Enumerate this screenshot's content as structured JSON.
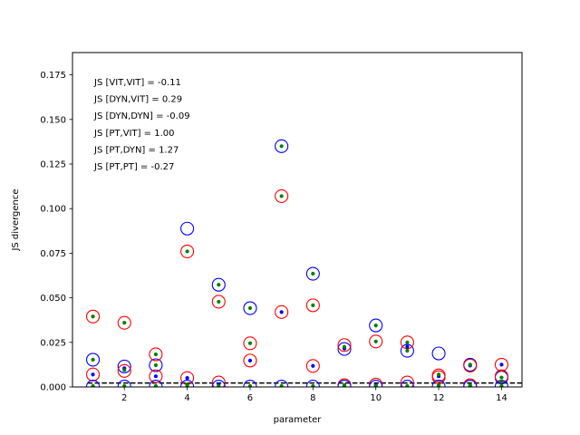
{
  "chart_data": {
    "type": "scatter",
    "title": "",
    "xlabel": "parameter",
    "ylabel": "JS divergence",
    "xlim": [
      0.35,
      14.65
    ],
    "ylim": [
      0,
      0.1875
    ],
    "x_ticks": [
      2,
      4,
      6,
      8,
      10,
      12,
      14
    ],
    "x_tick_labels": [
      "2",
      "4",
      "6",
      "8",
      "10",
      "12",
      "14"
    ],
    "y_ticks": [
      0,
      0.025,
      0.05,
      0.075,
      0.1,
      0.125,
      0.15,
      0.175
    ],
    "y_tick_labels": [
      "0.000",
      "0.025",
      "0.050",
      "0.075",
      "0.100",
      "0.125",
      "0.150",
      "0.175"
    ],
    "grid": false,
    "annotations": [
      "JS [VIT,VIT] = -0.11",
      "JS [DYN,VIT] = 0.29",
      "JS [DYN,DYN] = -0.09",
      "JS [PT,VIT] = 1.00",
      "JS [PT,DYN] = 1.27",
      "JS [PT,PT] = -0.27"
    ],
    "reference_line": {
      "y": 0.0022,
      "style": "dashed",
      "color": "#000000"
    },
    "series": [
      {
        "marker": "open-circle",
        "color": "#0000ff",
        "x": [
          1,
          2,
          3,
          4,
          5,
          6,
          7,
          8,
          9,
          10,
          11,
          12,
          13,
          14
        ],
        "y": [
          0.0153,
          0.0115,
          0.0122,
          0.0888,
          0.0573,
          0.0442,
          0.135,
          0.0635,
          0.0213,
          0.0345,
          0.0203,
          0.0188,
          0.0125,
          0.0053
        ]
      },
      {
        "marker": "open-circle",
        "color": "#ff0000",
        "x": [
          1,
          2,
          3,
          4,
          5,
          6,
          7,
          8,
          9,
          10,
          11,
          12,
          13,
          14
        ],
        "y": [
          0.0395,
          0.036,
          0.0183,
          0.076,
          0.0478,
          0.0245,
          0.107,
          0.0458,
          0.0235,
          0.0255,
          0.025,
          0.0065,
          0.012,
          0.0125
        ]
      },
      {
        "marker": "open-circle",
        "color": "#ff0000",
        "x": [
          1,
          2,
          3,
          4,
          5,
          6,
          7,
          8,
          9,
          10,
          11,
          12,
          13,
          14
        ],
        "y": [
          0.007,
          0.009,
          0.006,
          0.005,
          0.0025,
          0.0148,
          0.042,
          0.0118,
          0.001,
          0.0013,
          0.0025,
          0.0055,
          0.001,
          0.006
        ]
      },
      {
        "marker": "open-circle",
        "color": "#0000ff",
        "x": [
          1,
          2,
          3,
          4,
          5,
          6,
          7,
          8,
          9,
          10,
          11,
          12,
          13,
          14
        ],
        "y": [
          0.0002,
          0.0002,
          0.0002,
          0.0002,
          0.0002,
          0.0002,
          0.0002,
          0.0002,
          0.0002,
          0.0002,
          0.0002,
          0.0002,
          0.0002,
          0.0002
        ]
      },
      {
        "marker": "dot",
        "color": "#0000ff",
        "x": [
          1,
          2,
          3,
          4,
          5,
          6,
          7,
          8,
          9,
          10,
          11,
          12,
          13,
          14
        ],
        "y": [
          0.007,
          0.0105,
          0.006,
          0.005,
          0.0015,
          0.0148,
          0.042,
          0.0118,
          0.0215,
          0.001,
          0.0225,
          0.006,
          0.012,
          0.0125
        ]
      },
      {
        "marker": "dot",
        "color": "#008000",
        "x": [
          1,
          2,
          3,
          4,
          5,
          6,
          7,
          8,
          9,
          10,
          11,
          12,
          13,
          14
        ],
        "y": [
          0.0153,
          0.0095,
          0.0122,
          0.076,
          0.0573,
          0.0442,
          0.135,
          0.0635,
          0.0225,
          0.0345,
          0.0203,
          0.007,
          0.0125,
          0.0053
        ]
      },
      {
        "marker": "dot",
        "color": "#008000",
        "x": [
          1,
          2,
          3,
          4,
          5,
          6,
          7,
          8,
          9,
          10,
          11,
          12,
          13,
          14
        ],
        "y": [
          0.0395,
          0.036,
          0.0183,
          0.0015,
          0.0478,
          0.0245,
          0.107,
          0.0458,
          0.001,
          0.0255,
          0.025,
          0.001,
          0.001,
          0.003
        ]
      },
      {
        "marker": "dot",
        "color": "#008000",
        "x": [
          1,
          2,
          3,
          4,
          5,
          6,
          7,
          8,
          9,
          10,
          11,
          12,
          13,
          14
        ],
        "y": [
          0.0005,
          0.0005,
          0.0005,
          0.0005,
          0.0005,
          0.0005,
          0.0005,
          0.0005,
          0.0005,
          0.0005,
          0.0005,
          0.0005,
          0.0005,
          0.0005
        ]
      }
    ]
  }
}
